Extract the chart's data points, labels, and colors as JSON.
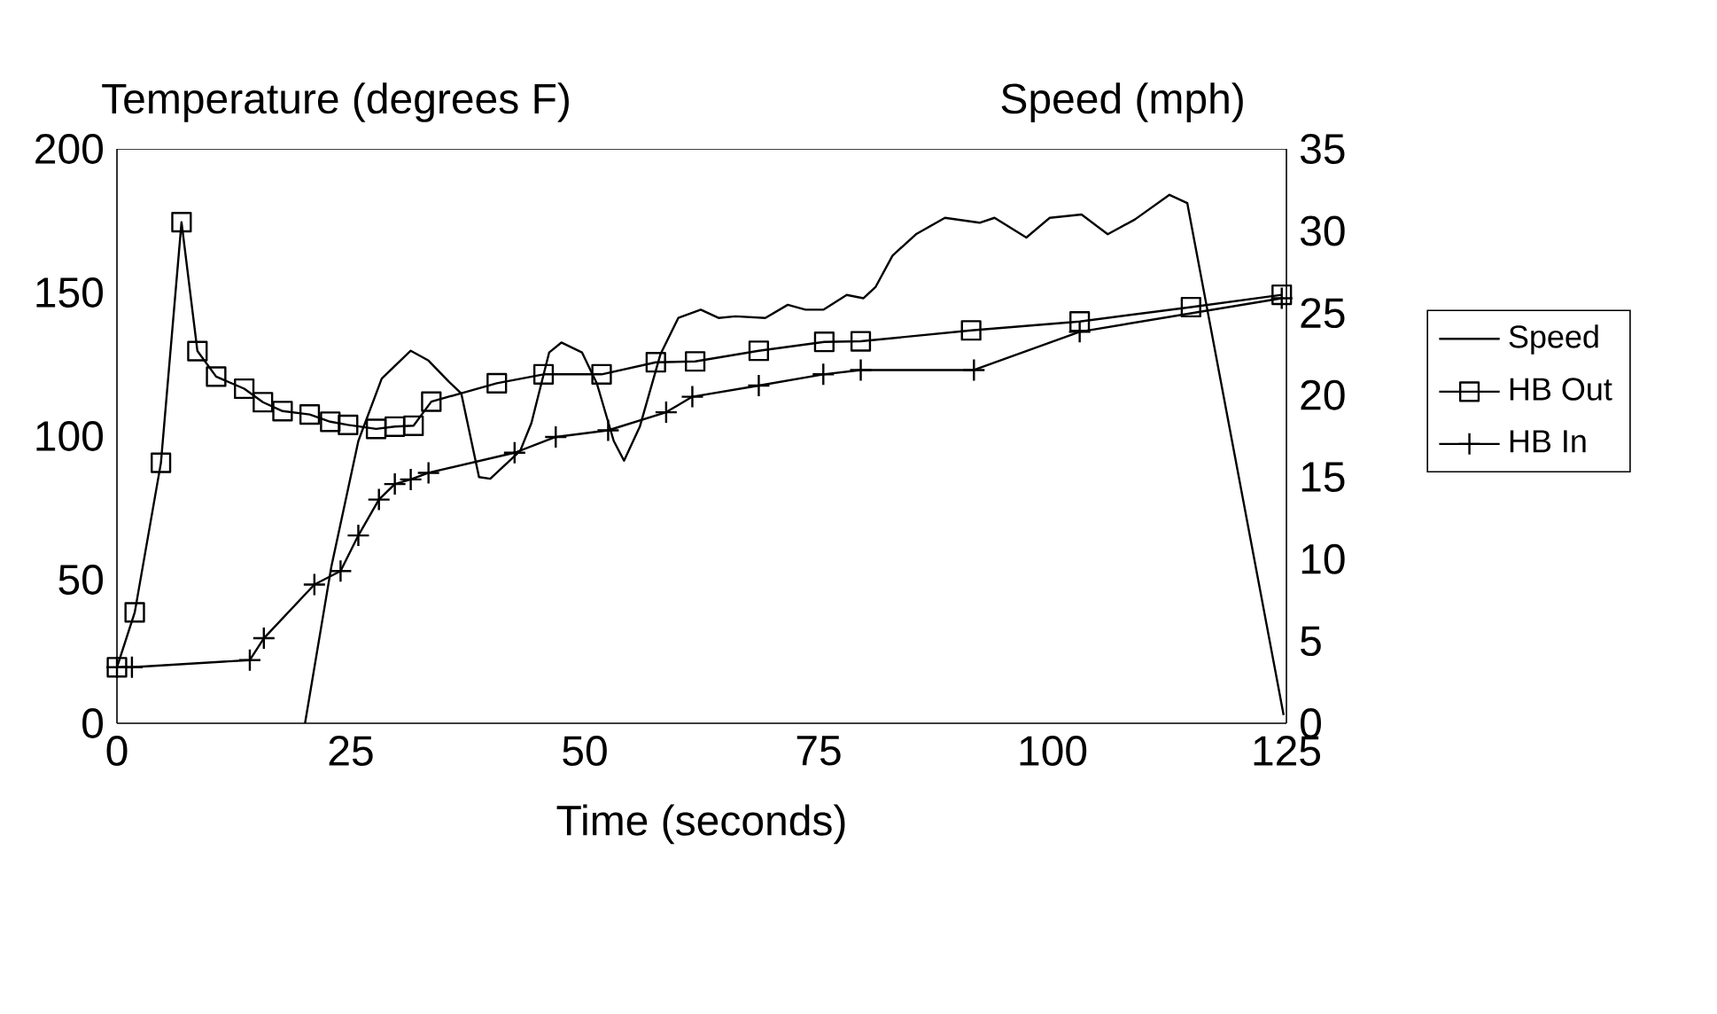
{
  "chart_data": {
    "type": "line",
    "xlabel": "Time (seconds)",
    "ylabel": "Temperature (degrees F)",
    "y2label": "Speed (mph)",
    "xlim": [
      0,
      125
    ],
    "xticks": [
      0,
      25,
      50,
      75,
      100,
      125
    ],
    "ylim": [
      0,
      200
    ],
    "yticks": [
      0,
      50,
      100,
      150,
      200
    ],
    "y2lim": [
      0,
      35
    ],
    "y2ticks": [
      0,
      5,
      10,
      15,
      20,
      25,
      30,
      35
    ],
    "legend": "right",
    "grid": false,
    "line_style": "solid",
    "series": [
      {
        "name": "Speed",
        "axis": "y2",
        "marker": "none",
        "color": "#000000",
        "x": [
          20.1,
          22.9,
          25.8,
          28.3,
          31.4,
          33.3,
          35.5,
          36.8,
          38.7,
          39.9,
          43.1,
          44.3,
          46.2,
          47.5,
          49.7,
          51.3,
          53.1,
          54.2,
          55.9,
          58.1,
          60,
          62.4,
          64.3,
          66.1,
          69.3,
          71.7,
          73.6,
          75.5,
          78,
          79.8,
          81.1,
          82.9,
          85.4,
          88.5,
          92.2,
          93.8,
          97.2,
          99.7,
          103.1,
          105.9,
          108.8,
          112.5,
          114.4,
          124.7
        ],
        "values": [
          0,
          9.5,
          17.2,
          21,
          22.7,
          22.1,
          20.8,
          20.1,
          15,
          14.9,
          16.6,
          18.3,
          22.6,
          23.2,
          22.6,
          20.7,
          17.2,
          16,
          18.1,
          22.5,
          24.7,
          25.2,
          24.7,
          24.8,
          24.7,
          25.5,
          25.2,
          25.2,
          26.1,
          25.9,
          26.6,
          28.5,
          29.8,
          30.8,
          30.5,
          30.8,
          29.6,
          30.8,
          31,
          29.8,
          30.7,
          32.2,
          31.7,
          0.5
        ]
      },
      {
        "name": "HB Out",
        "marker": "square",
        "color": "#000000",
        "x": [
          0,
          1.9,
          4.7,
          6.9,
          8.6,
          10.6,
          13.6,
          15.6,
          17.7,
          20.6,
          22.8,
          24.7,
          27.7,
          29.7,
          31.7,
          33.6,
          40.6,
          45.6,
          51.8,
          57.6,
          61.8,
          68.6,
          75.6,
          79.5,
          91.3,
          102.9,
          114.8,
          124.5
        ],
        "values": [
          19.5,
          38.6,
          90.7,
          174.5,
          129.6,
          120.7,
          116.5,
          111.8,
          108.7,
          107.5,
          105,
          103.9,
          102.5,
          103.3,
          103.6,
          112,
          118.4,
          121.5,
          121.5,
          125.7,
          126,
          129.7,
          132.8,
          133,
          136.8,
          139.9,
          144.9,
          149.2
        ]
      },
      {
        "name": "HB In",
        "marker": "cross",
        "color": "#000000",
        "x": [
          0,
          1.6,
          14.2,
          15.7,
          21.1,
          23.9,
          25.8,
          28,
          29.7,
          31.4,
          33.3,
          42.5,
          46.9,
          52.5,
          58.7,
          61.5,
          68.6,
          75.5,
          79.5,
          91.6,
          102.9,
          124.5
        ],
        "values": [
          19.5,
          19.5,
          22,
          29.6,
          48.3,
          53,
          65.4,
          77.9,
          83.3,
          84.9,
          87.2,
          94.2,
          99.7,
          102,
          108.3,
          113.7,
          117.6,
          121.5,
          123,
          123,
          136.3,
          148
        ]
      }
    ]
  }
}
